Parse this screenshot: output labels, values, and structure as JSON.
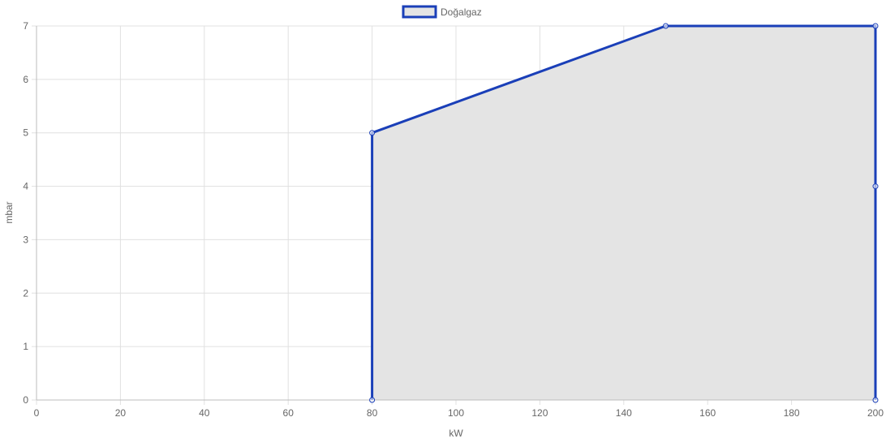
{
  "chart_data": {
    "type": "area",
    "title": "",
    "xlabel": "kW",
    "ylabel": "mbar",
    "xlim": [
      0,
      200
    ],
    "ylim": [
      0,
      7
    ],
    "x_ticks": [
      "0",
      "20",
      "40",
      "60",
      "80",
      "100",
      "120",
      "140",
      "160",
      "180",
      "200"
    ],
    "y_ticks": [
      "0",
      "1",
      "2",
      "3",
      "4",
      "5",
      "6",
      "7"
    ],
    "grid": true,
    "legend_position": "top-center",
    "series": [
      {
        "name": "Doğalgaz",
        "color": "#1a3fb8",
        "fill": "#e4e4e4",
        "points": [
          {
            "x": 80,
            "y": 0
          },
          {
            "x": 80,
            "y": 5
          },
          {
            "x": 150,
            "y": 7
          },
          {
            "x": 200,
            "y": 7
          },
          {
            "x": 200,
            "y": 4
          },
          {
            "x": 200,
            "y": 0
          }
        ]
      }
    ]
  }
}
